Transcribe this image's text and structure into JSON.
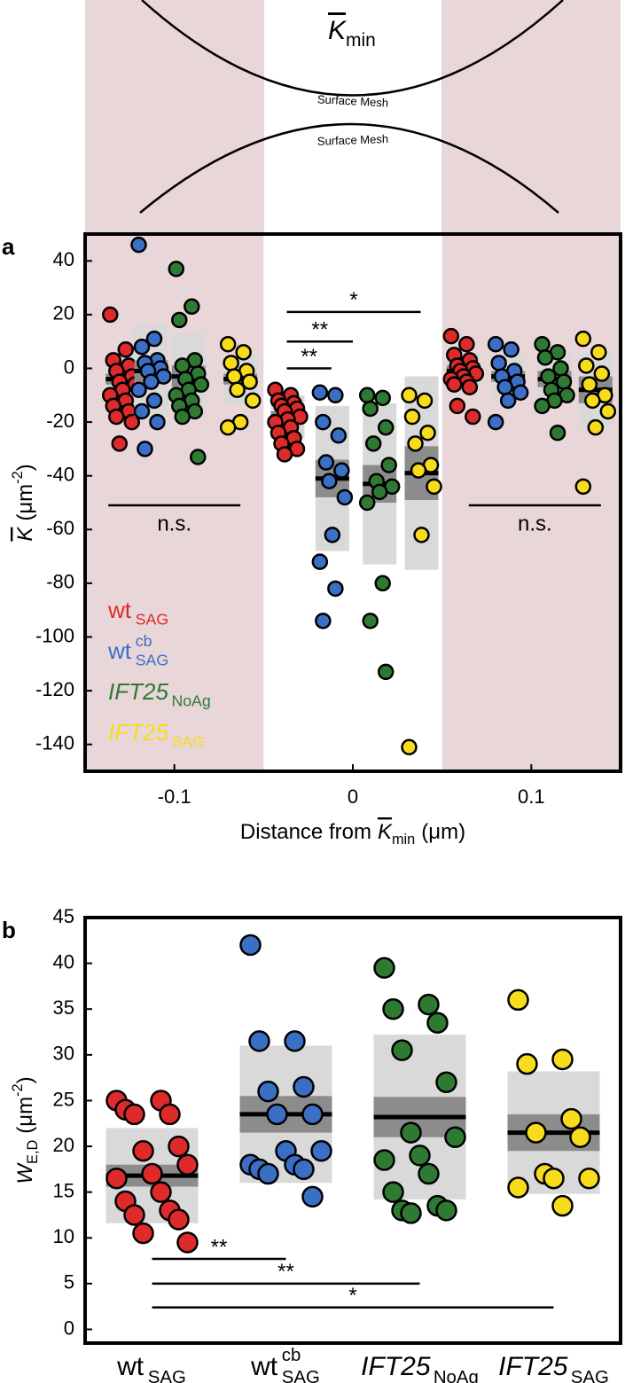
{
  "diagram": {
    "symbol": "K",
    "symbol_sub": "min",
    "mesh_labels": [
      "Surface Mesh",
      "Surface Mesh"
    ]
  },
  "chart_data": [
    {
      "type": "strip",
      "panel_label": "a",
      "xlabel": {
        "text": "Distance from",
        "symbol": "K",
        "symbol_sub": "min",
        "unit": "(μm)"
      },
      "ylabel": {
        "symbol": "K",
        "unit": "(μm",
        "exponent": "-2",
        "close": ")"
      },
      "xlim": [
        -0.15,
        0.15
      ],
      "ylim": [
        -150,
        50
      ],
      "xticks": [
        -0.1,
        0,
        0.1
      ],
      "yticks": [
        40,
        20,
        0,
        -20,
        -40,
        -60,
        -80,
        -100,
        -120,
        -140
      ],
      "shaded_regions": [
        [
          -0.15,
          -0.05
        ],
        [
          0.05,
          0.15
        ]
      ],
      "shade_color": "#e8d6d9",
      "legend": "lower left",
      "series": [
        {
          "name": "wt",
          "sub": "SAG",
          "color": "#de2a2a",
          "groups": [
            {
              "x": -0.129,
              "values": [
                20,
                7,
                3,
                1,
                -1,
                -3,
                -5,
                -6,
                -8,
                -10,
                -12,
                -14,
                -16,
                -18,
                -20,
                -28
              ],
              "mean": -4,
              "sem": 2,
              "sd": 9
            },
            {
              "x": -0.0365,
              "values": [
                -8,
                -10,
                -12,
                -13,
                -14,
                -15,
                -16,
                -18,
                -19,
                -20,
                -22,
                -24,
                -26,
                -28,
                -30,
                -32
              ],
              "mean": -18,
              "sem": 2,
              "sd": 8
            },
            {
              "x": 0.062,
              "values": [
                12,
                9,
                5,
                3,
                1,
                0,
                -1,
                -2,
                -3,
                -4,
                -5,
                -6,
                -7,
                -14,
                -18
              ],
              "mean": -1,
              "sem": 2,
              "sd": 7
            }
          ]
        },
        {
          "name": "wt",
          "sup": "cb",
          "sub": "SAG",
          "color": "#3b6fc6",
          "groups": [
            {
              "x": -0.113,
              "values": [
                46,
                11,
                8,
                3,
                2,
                0,
                -1,
                -3,
                -5,
                -8,
                -12,
                -16,
                -20,
                -30
              ],
              "mean": -1,
              "sem": 4,
              "sd": 17
            },
            {
              "x": -0.0115,
              "values": [
                -9,
                -10,
                -20,
                -25,
                -35,
                -38,
                -42,
                -48,
                -62,
                -72,
                -82,
                -94
              ],
              "mean": -41,
              "sem": 7,
              "sd": 27
            },
            {
              "x": 0.087,
              "values": [
                9,
                7,
                2,
                -1,
                -3,
                -5,
                -7,
                -9,
                -12,
                -20
              ],
              "mean": -3,
              "sem": 2,
              "sd": 8
            }
          ]
        },
        {
          "name": "IFT25",
          "italic": true,
          "sub": "NoAg",
          "color": "#2f7a33",
          "groups": [
            {
              "x": -0.092,
              "values": [
                37,
                23,
                18,
                3,
                1,
                -2,
                -4,
                -6,
                -8,
                -10,
                -12,
                -14,
                -16,
                -18,
                -33
              ],
              "mean": -3,
              "sem": 4,
              "sd": 16
            },
            {
              "x": 0.015,
              "values": [
                -10,
                -11,
                -15,
                -22,
                -28,
                -36,
                -42,
                -44,
                -46,
                -50,
                -80,
                -94,
                -113
              ],
              "mean": -43,
              "sem": 7,
              "sd": 30
            },
            {
              "x": 0.113,
              "values": [
                9,
                6,
                4,
                0,
                -3,
                -5,
                -8,
                -10,
                -12,
                -14,
                -24
              ],
              "mean": -4,
              "sem": 3,
              "sd": 9
            }
          ]
        },
        {
          "name": "IFT25",
          "italic": true,
          "sub": "SAG",
          "color": "#f7dc1c",
          "groups": [
            {
              "x": -0.063,
              "values": [
                9,
                6,
                2,
                -1,
                -3,
                -5,
                -8,
                -12,
                -20,
                -22
              ],
              "mean": -4,
              "sem": 2,
              "sd": 9
            },
            {
              "x": 0.0385,
              "values": [
                -10,
                -12,
                -18,
                -24,
                -28,
                -36,
                -38,
                -44,
                -62,
                -141
              ],
              "mean": -39,
              "sem": 10,
              "sd": 36
            },
            {
              "x": 0.136,
              "values": [
                11,
                6,
                1,
                -2,
                -6,
                -10,
                -12,
                -16,
                -22,
                -44
              ],
              "mean": -8,
              "sem": 5,
              "sd": 14
            }
          ]
        }
      ],
      "annotations": [
        {
          "label": "*",
          "x": [
            -0.037,
            0.038
          ],
          "y": 21
        },
        {
          "label": "**",
          "x": [
            -0.037,
            0
          ],
          "y": 10
        },
        {
          "label": "**",
          "x": [
            -0.037,
            -0.012
          ],
          "y": 0
        },
        {
          "label": "n.s.",
          "x": [
            -0.137,
            -0.063
          ],
          "y": -51,
          "label_position": "below"
        },
        {
          "label": "n.s.",
          "x": [
            0.065,
            0.139
          ],
          "y": -51,
          "label_position": "below"
        }
      ]
    },
    {
      "type": "strip",
      "panel_label": "b",
      "ylabel": {
        "symbol": "W",
        "symbol_sub": "E,D",
        "unit": "(μm",
        "exponent": "-2",
        "close": ")"
      },
      "ylim": [
        -1.5,
        45
      ],
      "yticks": [
        0,
        5,
        10,
        15,
        20,
        25,
        30,
        35,
        40,
        45
      ],
      "series": [
        {
          "name": "wt",
          "sub": "SAG",
          "color": "#de2a2a",
          "values": [
            25,
            25,
            24,
            23.5,
            23.5,
            20,
            19.5,
            18,
            17,
            16.5,
            15,
            14,
            13,
            12.5,
            12,
            10.5,
            9.5
          ],
          "mean": 16.8,
          "sem": 1.2,
          "sd": 5.2
        },
        {
          "name": "wt",
          "sup": "cb",
          "sub": "SAG",
          "color": "#3b6fc6",
          "values": [
            42,
            31.5,
            31.5,
            26.5,
            26,
            23.5,
            23.5,
            19.5,
            19.5,
            18,
            18,
            17.5,
            17.5,
            17,
            14.5
          ],
          "mean": 23.5,
          "sem": 2,
          "sd": 7.5
        },
        {
          "name": "IFT25",
          "italic": true,
          "sub": "NoAg",
          "color": "#2f7a33",
          "values": [
            39.5,
            35.5,
            35,
            33.5,
            30.5,
            27,
            21.5,
            21,
            19,
            18.5,
            17,
            15,
            13.5,
            13,
            13,
            12.7
          ],
          "mean": 23.2,
          "sem": 2.2,
          "sd": 9
        },
        {
          "name": "IFT25",
          "italic": true,
          "sub": "SAG",
          "color": "#f7dc1c",
          "values": [
            36,
            29.5,
            29,
            23,
            21.5,
            21,
            17,
            16.5,
            16.5,
            15.5,
            13.5
          ],
          "mean": 21.5,
          "sem": 2,
          "sd": 6.7
        }
      ],
      "annotations": [
        {
          "label": "**",
          "from": 0,
          "to": 1,
          "y": 7.7
        },
        {
          "label": "**",
          "from": 0,
          "to": 2,
          "y": 5
        },
        {
          "label": "*",
          "from": 0,
          "to": 3,
          "y": 2.4
        }
      ]
    }
  ]
}
